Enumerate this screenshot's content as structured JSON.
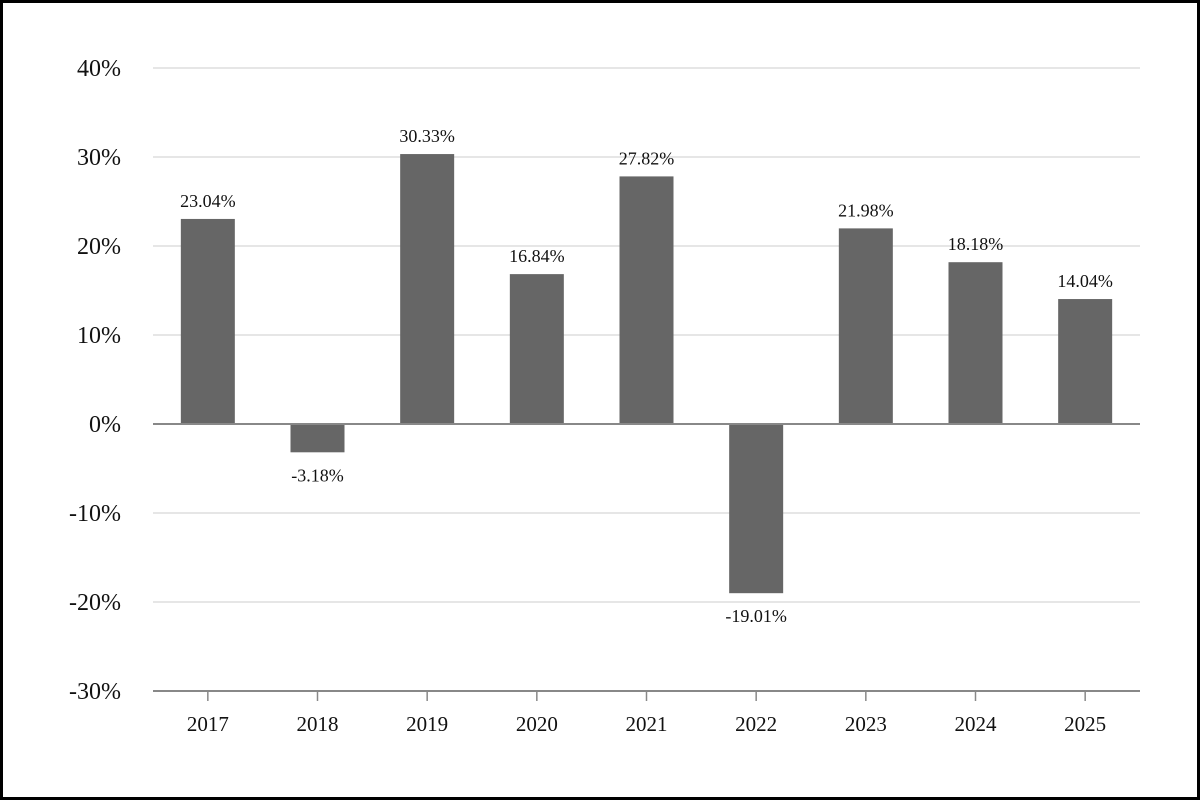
{
  "chart_data": {
    "type": "bar",
    "categories": [
      "2017",
      "2018",
      "2019",
      "2020",
      "2021",
      "2022",
      "2023",
      "2024",
      "2025"
    ],
    "values": [
      23.04,
      -3.18,
      30.33,
      16.84,
      27.82,
      -19.01,
      21.98,
      18.18,
      14.04
    ],
    "value_labels": [
      "23.04%",
      "-3.18%",
      "30.33%",
      "16.84%",
      "27.82%",
      "-19.01%",
      "21.98%",
      "18.18%",
      "14.04%"
    ],
    "ylim": [
      -30,
      40
    ],
    "yticks": [
      40,
      30,
      20,
      10,
      0,
      -10,
      -20,
      -30
    ],
    "ytick_labels": [
      "40%",
      "30%",
      "20%",
      "10%",
      "0%",
      "-10%",
      "-20%",
      "-30%"
    ],
    "grid": true,
    "bar_color": "#666666",
    "grid_color": "#e6e6e6",
    "axis_color": "#888888"
  }
}
